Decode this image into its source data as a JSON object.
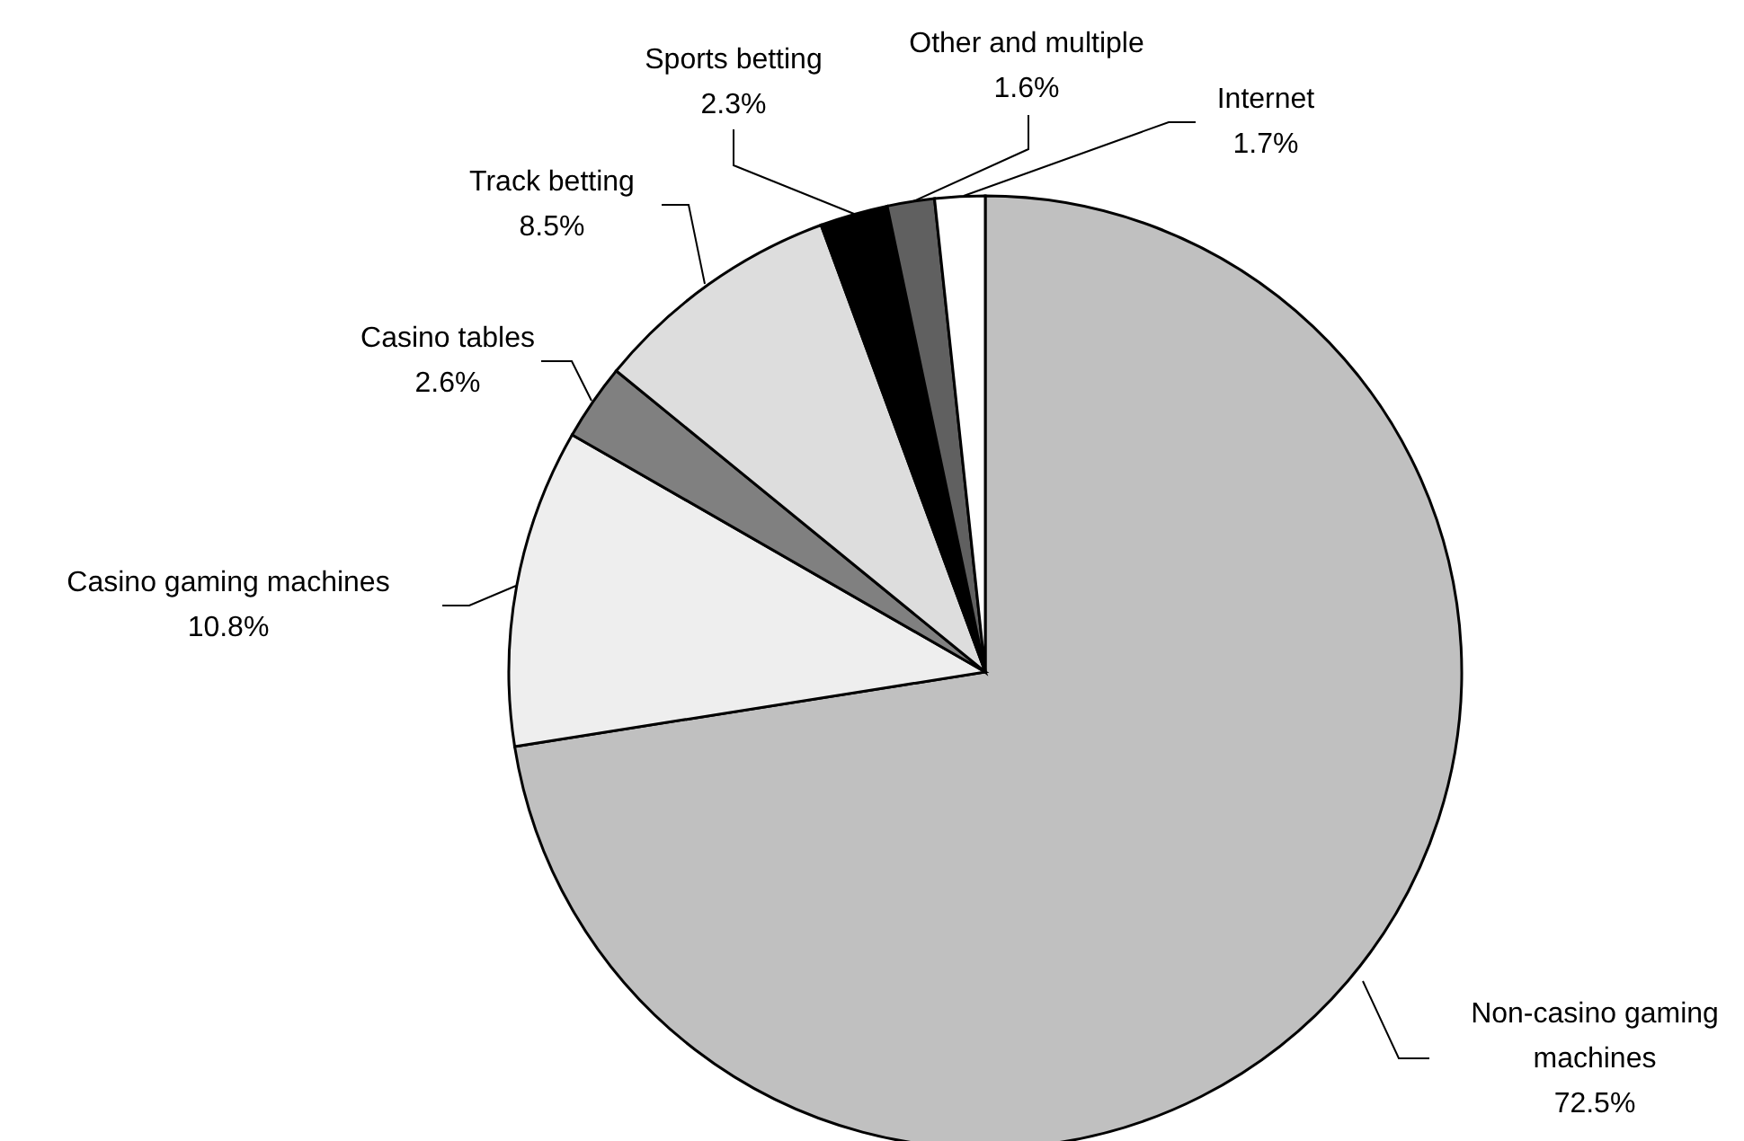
{
  "chart_data": {
    "type": "pie",
    "categories": [
      "Non-casino gaming machines",
      "Casino gaming machines",
      "Casino tables",
      "Track betting",
      "Sports betting",
      "Other and multiple",
      "Internet"
    ],
    "values": [
      72.5,
      10.8,
      2.6,
      8.5,
      2.3,
      1.6,
      1.7
    ],
    "value_labels": [
      "72.5%",
      "10.8%",
      "2.6%",
      "8.5%",
      "2.3%",
      "1.6%",
      "1.7%"
    ],
    "colors": [
      "#c0c0c0",
      "#eeeeee",
      "#808080",
      "#dddddd",
      "#000000",
      "#606060",
      "#ffffff"
    ]
  }
}
